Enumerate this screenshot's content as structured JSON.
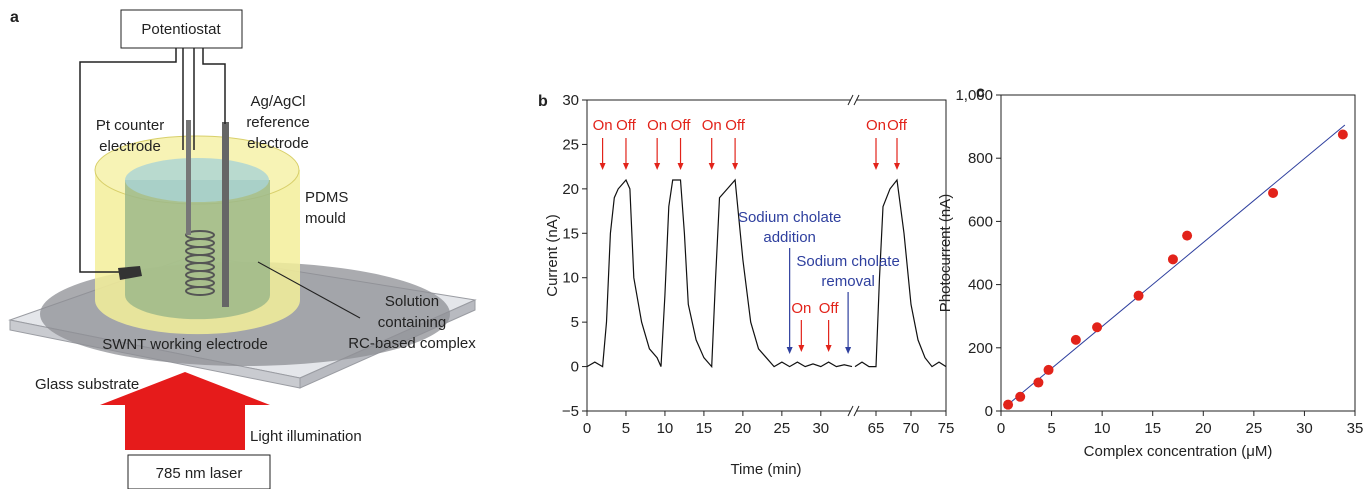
{
  "panel_a": {
    "label": "a",
    "potentiostat": "Potentiostat",
    "pt_electrode": [
      "Pt counter",
      "electrode"
    ],
    "reference_electrode": [
      "Ag/AgCl",
      "reference",
      "electrode"
    ],
    "mould": [
      "PDMS",
      "mould"
    ],
    "solution": [
      "Solution",
      "containing",
      "RC-based complex"
    ],
    "swnt": "SWNT working electrode",
    "glass": "Glass substrate",
    "light": "Light illumination",
    "laser": "785 nm laser"
  },
  "chart_data": [
    {
      "type": "line",
      "panel": "b",
      "x_label": "Time (min)",
      "y_label": "Current (nA)",
      "xlim": [
        0,
        75
      ],
      "xbreak": [
        34,
        62
      ],
      "ylim": [
        -5,
        30
      ],
      "xticks": [
        0,
        5,
        10,
        15,
        20,
        25,
        30,
        65,
        70,
        75
      ],
      "yticks": [
        {
          "value": -5,
          "label": "−5"
        },
        0,
        5,
        10,
        15,
        20,
        25,
        30
      ],
      "color": "#111111",
      "x": [
        0,
        1,
        2,
        2.5,
        3,
        3.5,
        4,
        5,
        5.5,
        6,
        7,
        8,
        9,
        9.5,
        10,
        10.5,
        11,
        12,
        12.5,
        13,
        14,
        15,
        16,
        16.5,
        17,
        18,
        19,
        20,
        21,
        22,
        23,
        24,
        25,
        26,
        27,
        28,
        29,
        30,
        31,
        32,
        33,
        34,
        null,
        62,
        63,
        64,
        65,
        65.5,
        66,
        67,
        68,
        69,
        70,
        71,
        72,
        73,
        74,
        75
      ],
      "values": [
        0,
        0.5,
        0,
        5,
        15,
        19,
        20,
        21,
        20,
        10,
        5,
        2,
        1,
        0,
        8,
        18,
        21,
        21,
        15,
        7,
        3,
        1,
        0,
        10,
        19,
        20,
        21,
        12,
        5,
        2,
        1,
        0,
        0.5,
        0,
        0.5,
        0,
        0.3,
        0,
        0.5,
        0,
        0.2,
        0,
        null,
        0,
        0.5,
        0,
        0,
        10,
        18,
        20,
        21,
        15,
        7,
        3,
        1,
        0,
        0.5,
        0
      ],
      "light_switches": [
        {
          "text": "On",
          "x": 2
        },
        {
          "text": "Off",
          "x": 5
        },
        {
          "text": "On",
          "x": 9
        },
        {
          "text": "Off",
          "x": 12
        },
        {
          "text": "On",
          "x": 16
        },
        {
          "text": "Off",
          "x": 19
        },
        {
          "text": "On",
          "x": 65
        },
        {
          "text": "Off",
          "x": 68
        }
      ],
      "light_switches_cholate": [
        {
          "text": "On",
          "x": 27.5
        },
        {
          "text": "Off",
          "x": 31
        }
      ],
      "switch_color": "#e2231a",
      "cholate_events": [
        {
          "text": [
            "Sodium cholate",
            "addition"
          ],
          "x": 26
        },
        {
          "text": [
            "Sodium cholate",
            "removal"
          ],
          "x": 33.5
        }
      ],
      "cholate_color": "#2e3f9e"
    },
    {
      "type": "scatter",
      "panel": "c",
      "x_label": "Complex concentration (μM)",
      "y_label": "Photocurrent (nA)",
      "xlim": [
        0,
        35
      ],
      "ylim": [
        0,
        1000
      ],
      "xticks": [
        0,
        5,
        10,
        15,
        20,
        25,
        30,
        35
      ],
      "yticks": [
        0,
        200,
        400,
        600,
        800,
        {
          "value": 1000,
          "label": "1,000"
        }
      ],
      "color": "#e2231a",
      "x": [
        0.7,
        1.9,
        3.7,
        4.7,
        7.4,
        9.5,
        13.6,
        17,
        18.4,
        26.9,
        33.8
      ],
      "values": [
        20,
        45,
        90,
        130,
        225,
        265,
        365,
        480,
        555,
        690,
        875
      ],
      "fit": {
        "x": [
          0.3,
          34
        ],
        "values": [
          10,
          905
        ],
        "color": "#2e3f9e"
      }
    }
  ]
}
